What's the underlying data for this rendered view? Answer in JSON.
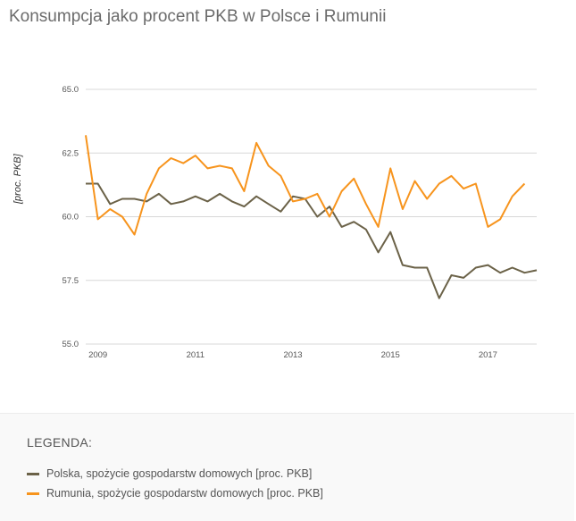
{
  "title": "Konsumpcja jako procent PKB w Polsce i Rumunii",
  "legend_title": "LEGENDA:",
  "chart_data": {
    "type": "line",
    "ylabel": "[proc. PKB]",
    "ylim": [
      55.0,
      65.0
    ],
    "yticks": [
      "65.0",
      "62.5",
      "60.0",
      "57.5",
      "55.0"
    ],
    "xticks": [
      "2009",
      "2011",
      "2013",
      "2015",
      "2017"
    ],
    "xlim": [
      2008.75,
      2018.0
    ],
    "grid": true,
    "series": [
      {
        "name": "Polska, spożycie gospodarstw domowych [proc. PKB]",
        "color": "#6b6248",
        "x": [
          2008.75,
          2009.0,
          2009.25,
          2009.5,
          2009.75,
          2010.0,
          2010.25,
          2010.5,
          2010.75,
          2011.0,
          2011.25,
          2011.5,
          2011.75,
          2012.0,
          2012.25,
          2012.5,
          2012.75,
          2013.0,
          2013.25,
          2013.5,
          2013.75,
          2014.0,
          2014.25,
          2014.5,
          2014.75,
          2015.0,
          2015.25,
          2015.5,
          2015.75,
          2016.0,
          2016.25,
          2016.5,
          2016.75,
          2017.0,
          2017.25,
          2017.5,
          2017.75,
          2018.0
        ],
        "values": [
          61.3,
          61.3,
          60.5,
          60.7,
          60.7,
          60.6,
          60.9,
          60.5,
          60.6,
          60.8,
          60.6,
          60.9,
          60.6,
          60.4,
          60.8,
          60.5,
          60.2,
          60.8,
          60.7,
          60.0,
          60.4,
          59.6,
          59.8,
          59.5,
          58.6,
          59.4,
          58.1,
          58.0,
          58.0,
          56.8,
          57.7,
          57.6,
          58.0,
          58.1,
          57.8,
          58.0,
          57.8,
          57.9
        ]
      },
      {
        "name": "Rumunia, spożycie gospodarstw domowych [proc. PKB]",
        "color": "#f7941d",
        "x": [
          2008.75,
          2009.0,
          2009.25,
          2009.5,
          2009.75,
          2010.0,
          2010.25,
          2010.5,
          2010.75,
          2011.0,
          2011.25,
          2011.5,
          2011.75,
          2012.0,
          2012.25,
          2012.5,
          2012.75,
          2013.0,
          2013.25,
          2013.5,
          2013.75,
          2014.0,
          2014.25,
          2014.5,
          2014.75,
          2015.0,
          2015.25,
          2015.5,
          2015.75,
          2016.0,
          2016.25,
          2016.5,
          2016.75,
          2017.0,
          2017.25,
          2017.5,
          2017.75
        ],
        "values": [
          63.2,
          59.9,
          60.3,
          60.0,
          59.3,
          60.9,
          61.9,
          62.3,
          62.1,
          62.4,
          61.9,
          62.0,
          61.9,
          61.0,
          62.9,
          62.0,
          61.6,
          60.6,
          60.7,
          60.9,
          60.0,
          61.0,
          61.5,
          60.5,
          59.6,
          61.9,
          60.3,
          61.4,
          60.7,
          61.3,
          61.6,
          61.1,
          61.3,
          59.6,
          59.9,
          60.8,
          61.3
        ]
      }
    ]
  }
}
